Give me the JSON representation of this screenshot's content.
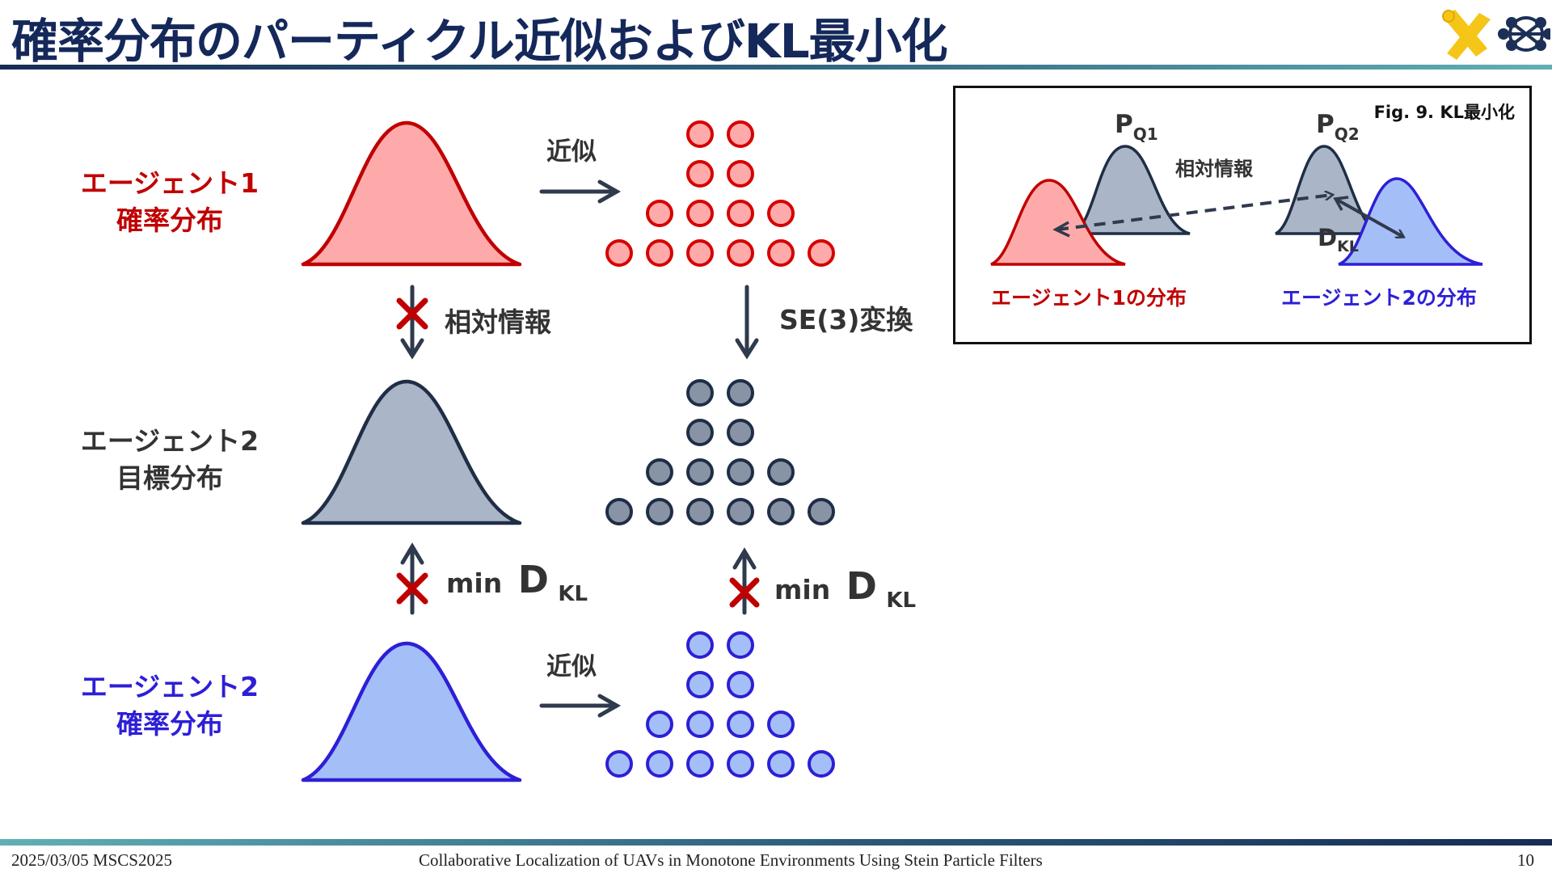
{
  "title": "確率分布のパーティクル近似およびKL最小化",
  "rows": [
    {
      "line1": "エージェント1",
      "line2": "確率分布",
      "color": "#c00000",
      "fill": "#ffaaaa",
      "particle_fill": "#ffaaaa",
      "particle_stroke": "#d60000"
    },
    {
      "line1": "エージェント2",
      "line2": "目標分布",
      "color": "#333333",
      "fill": "#aab6c8",
      "particle_fill": "#8894a6",
      "particle_stroke": "#1f2e46"
    },
    {
      "line1": "エージェント2",
      "line2": "確率分布",
      "color": "#2d1fd6",
      "fill": "#a4bff8",
      "particle_fill": "#a4bff8",
      "particle_stroke": "#2d1fd6"
    }
  ],
  "arrows": {
    "approx": "近似",
    "relative_info": "相対情報",
    "se3_transform": "SE(3)変換",
    "min": "min",
    "dkl_main": "D",
    "dkl_sub": "KL"
  },
  "inset": {
    "caption": "Fig. 9. KL最小化",
    "pq1_main": "P",
    "pq1_sub": "Q1",
    "pq2_main": "P",
    "pq2_sub": "Q2",
    "relative_info": "相対情報",
    "dkl_main": "D",
    "dkl_sub": "KL",
    "agent1_dist": "エージェント1の分布",
    "agent2_dist": "エージェント2の分布"
  },
  "colors": {
    "title": "#14285a",
    "arrow": "#2f3a4d",
    "cross": "#c00000",
    "agent1": "#c00000",
    "agent2": "#2d1fd6",
    "target": "#1f2e46",
    "logo_yellow": "#f5c518",
    "logo_navy": "#1c2f57"
  },
  "icons": [
    "logo-x-icon",
    "logo-network-icon",
    "cross-mark-icon",
    "arrow-right-icon",
    "arrow-down-icon",
    "arrow-up-icon"
  ],
  "footer": {
    "left": "2025/03/05 MSCS2025",
    "center": "Collaborative Localization of UAVs in Monotone Environments Using Stein Particle Filters",
    "page": "10"
  }
}
